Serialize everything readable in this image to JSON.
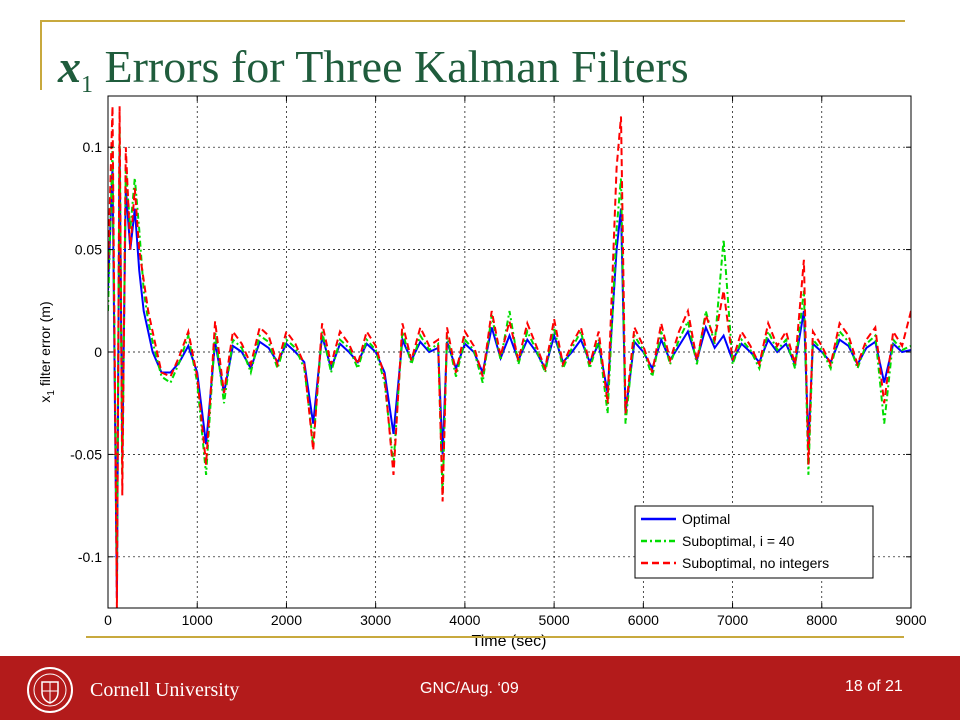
{
  "slide": {
    "title_var": "x",
    "title_sub": "1",
    "title_text": " Errors for Three Kalman Filters"
  },
  "footer": {
    "university": "Cornell University",
    "conference": "GNC/Aug. ‘09",
    "page": "18 of 21",
    "accent": "#b31b1b"
  },
  "chart_data": {
    "type": "line",
    "xlabel": "Time (sec)",
    "ylabel_main": "x",
    "ylabel_sub": "1",
    "ylabel_rest": " filter error (m)",
    "xlim": [
      0,
      9000
    ],
    "ylim": [
      -0.125,
      0.125
    ],
    "xticks": [
      0,
      1000,
      2000,
      3000,
      4000,
      5000,
      6000,
      7000,
      8000,
      9000
    ],
    "xtick_labels": [
      "0",
      "1000",
      "2000",
      "3000",
      "4000",
      "5000",
      "6000",
      "7000",
      "8000",
      "9000"
    ],
    "yticks": [
      -0.1,
      -0.05,
      0,
      0.05,
      0.1
    ],
    "ytick_labels": [
      "-0.1",
      "-0.05",
      "0",
      "0.05",
      "0.1"
    ],
    "grid": true,
    "legend_position": "bottom-right",
    "series": [
      {
        "name": "Optimal",
        "color": "#0000ff",
        "style": "solid",
        "x": [
          0,
          50,
          100,
          130,
          160,
          200,
          250,
          300,
          350,
          400,
          450,
          500,
          600,
          700,
          800,
          900,
          1000,
          1100,
          1200,
          1300,
          1400,
          1500,
          1600,
          1700,
          1800,
          1900,
          2000,
          2100,
          2200,
          2300,
          2400,
          2500,
          2600,
          2700,
          2800,
          2900,
          3000,
          3100,
          3200,
          3300,
          3400,
          3500,
          3600,
          3700,
          3750,
          3800,
          3900,
          4000,
          4100,
          4200,
          4300,
          4400,
          4500,
          4600,
          4700,
          4800,
          4900,
          5000,
          5100,
          5200,
          5300,
          5400,
          5500,
          5600,
          5700,
          5750,
          5800,
          5900,
          6000,
          6100,
          6200,
          6300,
          6400,
          6500,
          6600,
          6700,
          6800,
          6900,
          7000,
          7100,
          7200,
          7300,
          7400,
          7500,
          7600,
          7700,
          7800,
          7850,
          7900,
          8000,
          8100,
          8200,
          8300,
          8400,
          8500,
          8600,
          8700,
          8800,
          8900,
          9000
        ],
        "y": [
          0.03,
          0.09,
          -0.12,
          0.1,
          -0.05,
          0.08,
          0.05,
          0.07,
          0.04,
          0.02,
          0.01,
          0.0,
          -0.01,
          -0.01,
          -0.005,
          0.003,
          -0.01,
          -0.045,
          0.005,
          -0.02,
          0.003,
          0.0,
          -0.008,
          0.005,
          0.002,
          -0.005,
          0.004,
          0.0,
          -0.005,
          -0.035,
          0.008,
          -0.008,
          0.004,
          0.0,
          -0.005,
          0.004,
          0.0,
          -0.01,
          -0.04,
          0.006,
          -0.004,
          0.005,
          0.0,
          0.002,
          -0.05,
          0.005,
          -0.008,
          0.004,
          0.0,
          -0.01,
          0.012,
          -0.003,
          0.008,
          -0.004,
          0.006,
          0.0,
          -0.008,
          0.008,
          -0.005,
          0.0,
          0.006,
          -0.005,
          0.004,
          -0.02,
          0.05,
          0.07,
          -0.03,
          0.005,
          0.0,
          -0.008,
          0.006,
          -0.004,
          0.003,
          0.01,
          -0.004,
          0.012,
          0.002,
          0.008,
          -0.004,
          0.004,
          0.0,
          -0.005,
          0.006,
          0.0,
          0.004,
          -0.006,
          0.02,
          -0.045,
          0.004,
          0.0,
          -0.005,
          0.006,
          0.003,
          -0.006,
          0.002,
          0.005,
          -0.015,
          0.004,
          0.0,
          0.001
        ]
      },
      {
        "name": "Suboptimal, i = 40",
        "color": "#00dd00",
        "style": "dash-dot",
        "x": [
          0,
          50,
          100,
          130,
          160,
          200,
          250,
          300,
          350,
          400,
          450,
          500,
          600,
          700,
          800,
          900,
          1000,
          1100,
          1200,
          1300,
          1400,
          1500,
          1600,
          1700,
          1800,
          1900,
          2000,
          2100,
          2200,
          2300,
          2400,
          2500,
          2600,
          2700,
          2800,
          2900,
          3000,
          3100,
          3200,
          3300,
          3400,
          3500,
          3600,
          3700,
          3750,
          3800,
          3900,
          4000,
          4100,
          4200,
          4300,
          4400,
          4500,
          4600,
          4700,
          4800,
          4900,
          5000,
          5100,
          5200,
          5300,
          5400,
          5500,
          5600,
          5700,
          5750,
          5800,
          5900,
          6000,
          6100,
          6200,
          6300,
          6400,
          6500,
          6600,
          6700,
          6800,
          6900,
          7000,
          7100,
          7200,
          7300,
          7400,
          7500,
          7600,
          7700,
          7800,
          7850,
          7900,
          8000,
          8100,
          8200,
          8300,
          8400,
          8500,
          8600,
          8700,
          8800,
          8900,
          9000
        ],
        "y": [
          0.02,
          0.1,
          -0.11,
          0.11,
          -0.06,
          0.09,
          0.06,
          0.085,
          0.06,
          0.03,
          0.015,
          0.005,
          -0.012,
          -0.015,
          -0.005,
          0.008,
          -0.015,
          -0.06,
          0.01,
          -0.025,
          0.006,
          0.002,
          -0.01,
          0.008,
          0.005,
          -0.008,
          0.006,
          0.002,
          -0.008,
          -0.045,
          0.01,
          -0.01,
          0.006,
          0.002,
          -0.008,
          0.006,
          0.001,
          -0.015,
          -0.055,
          0.01,
          -0.006,
          0.008,
          0.001,
          0.004,
          -0.07,
          0.008,
          -0.012,
          0.006,
          0.001,
          -0.015,
          0.018,
          -0.004,
          0.02,
          -0.006,
          0.01,
          0.001,
          -0.01,
          0.012,
          -0.008,
          0.002,
          0.01,
          -0.008,
          0.006,
          -0.03,
          0.06,
          0.085,
          -0.035,
          0.008,
          0.001,
          -0.012,
          0.01,
          -0.006,
          0.006,
          0.015,
          -0.006,
          0.02,
          0.004,
          0.055,
          -0.006,
          0.006,
          0.001,
          -0.008,
          0.01,
          0.001,
          0.006,
          -0.008,
          0.03,
          -0.06,
          0.006,
          0.001,
          -0.008,
          0.01,
          0.005,
          -0.008,
          0.004,
          0.008,
          -0.035,
          0.006,
          0.001,
          0.003
        ]
      },
      {
        "name": "Suboptimal, no integers",
        "color": "#ff0000",
        "style": "dashed",
        "x": [
          0,
          50,
          100,
          130,
          160,
          200,
          250,
          300,
          350,
          400,
          450,
          500,
          600,
          700,
          800,
          900,
          1000,
          1100,
          1200,
          1300,
          1400,
          1500,
          1600,
          1700,
          1800,
          1900,
          2000,
          2100,
          2200,
          2300,
          2400,
          2500,
          2600,
          2700,
          2800,
          2900,
          3000,
          3100,
          3200,
          3300,
          3400,
          3500,
          3600,
          3700,
          3750,
          3800,
          3900,
          4000,
          4100,
          4200,
          4300,
          4400,
          4500,
          4600,
          4700,
          4800,
          4900,
          5000,
          5100,
          5200,
          5300,
          5400,
          5500,
          5600,
          5700,
          5750,
          5800,
          5900,
          6000,
          6100,
          6200,
          6300,
          6400,
          6500,
          6600,
          6700,
          6800,
          6900,
          7000,
          7100,
          7200,
          7300,
          7400,
          7500,
          7600,
          7700,
          7800,
          7850,
          7900,
          8000,
          8100,
          8200,
          8300,
          8400,
          8500,
          8600,
          8700,
          8800,
          8900,
          9000
        ],
        "y": [
          0.04,
          0.12,
          -0.125,
          0.12,
          -0.07,
          0.1,
          0.05,
          0.08,
          0.05,
          0.035,
          0.02,
          0.01,
          -0.01,
          -0.012,
          -0.002,
          0.01,
          -0.012,
          -0.055,
          0.015,
          -0.02,
          0.01,
          0.004,
          -0.006,
          0.012,
          0.008,
          -0.006,
          0.01,
          0.004,
          -0.006,
          -0.048,
          0.014,
          -0.006,
          0.01,
          0.004,
          -0.006,
          0.01,
          0.003,
          -0.012,
          -0.06,
          0.014,
          -0.004,
          0.012,
          0.003,
          0.006,
          -0.073,
          0.012,
          -0.01,
          0.01,
          0.003,
          -0.012,
          0.02,
          -0.002,
          0.015,
          -0.004,
          0.014,
          0.003,
          -0.008,
          0.016,
          -0.006,
          0.004,
          0.012,
          -0.006,
          0.01,
          -0.025,
          0.09,
          0.115,
          -0.03,
          0.012,
          0.003,
          -0.01,
          0.014,
          -0.004,
          0.01,
          0.02,
          -0.004,
          0.018,
          0.006,
          0.03,
          -0.004,
          0.01,
          0.003,
          -0.006,
          0.014,
          0.003,
          0.01,
          -0.006,
          0.045,
          -0.055,
          0.01,
          0.003,
          -0.006,
          0.014,
          0.008,
          -0.006,
          0.006,
          0.012,
          -0.025,
          0.01,
          0.003,
          0.02
        ]
      }
    ]
  }
}
